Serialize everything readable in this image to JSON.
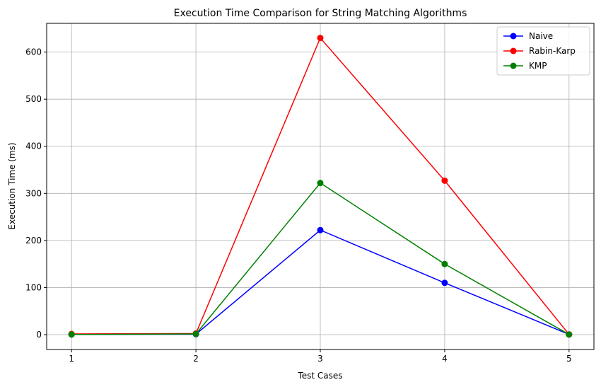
{
  "chart_data": {
    "type": "line",
    "title": "Execution Time Comparison for String Matching Algorithms",
    "xlabel": "Test Cases",
    "ylabel": "Execution Time (ms)",
    "x": [
      1,
      2,
      3,
      4,
      5
    ],
    "x_tick_labels": [
      "1",
      "2",
      "3",
      "4",
      "5"
    ],
    "y_ticks": [
      0,
      100,
      200,
      300,
      400,
      500,
      600
    ],
    "y_tick_labels": [
      "0",
      "100",
      "200",
      "300",
      "400",
      "500",
      "600"
    ],
    "xlim": [
      0.8,
      5.2
    ],
    "ylim": [
      -31.5,
      661
    ],
    "grid": true,
    "legend_position": "top-right",
    "series": [
      {
        "name": "Naive",
        "color": "#0000ff",
        "values": [
          0.5,
          1.0,
          222,
          110,
          0.5
        ]
      },
      {
        "name": "Rabin-Karp",
        "color": "#ff0000",
        "values": [
          1.5,
          2.5,
          630,
          327,
          0.5
        ]
      },
      {
        "name": "KMP",
        "color": "#008000",
        "values": [
          0.5,
          1.5,
          322,
          150,
          0.5
        ]
      }
    ]
  }
}
